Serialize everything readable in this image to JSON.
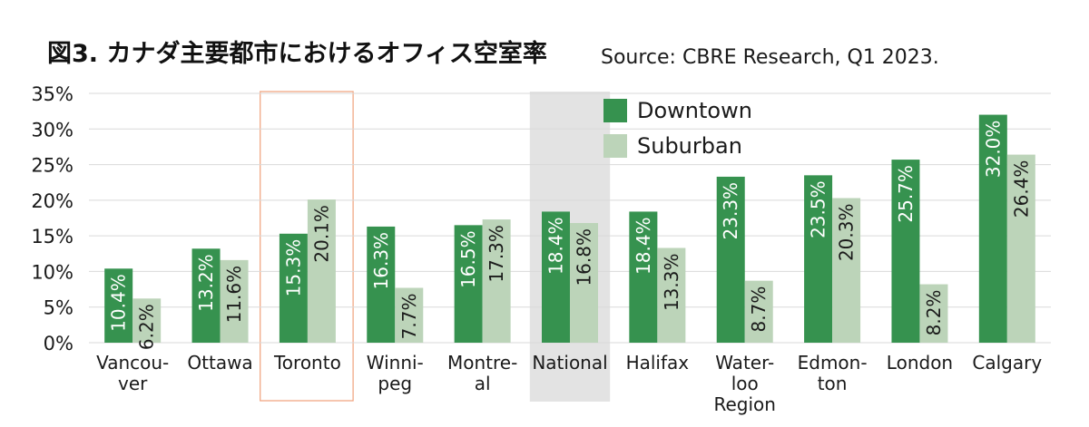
{
  "title": "図3. カナダ主要都市におけるオフィス空室率",
  "source": "Source: CBRE Research, Q1 2023.",
  "colors": {
    "downtown": "#36924f",
    "suburban": "#bcd4b9",
    "national_band": "#e3e3e3",
    "toronto_outline": "#f0a07a",
    "grid": "#d9d9d9"
  },
  "chart_data": {
    "type": "bar",
    "title": "図3. カナダ主要都市におけるオフィス空室率",
    "xlabel": "",
    "ylabel": "",
    "ylim": [
      0,
      35
    ],
    "yticks": [
      "0%",
      "5%",
      "10%",
      "15%",
      "20%",
      "25%",
      "30%",
      "35%"
    ],
    "grid": true,
    "legend_position": "top-center",
    "categories": [
      [
        "Vancou-",
        "ver"
      ],
      [
        "Ottawa"
      ],
      [
        "Toronto"
      ],
      [
        "Winni-",
        "peg"
      ],
      [
        "Montre-",
        "al"
      ],
      [
        "National"
      ],
      [
        "Halifax"
      ],
      [
        "Water-",
        "loo",
        "Region"
      ],
      [
        "Edmon-",
        "ton"
      ],
      [
        "London"
      ],
      [
        "Calgary"
      ]
    ],
    "highlighted": {
      "outlined": "Toronto",
      "shaded": "National"
    },
    "series": [
      {
        "name": "Downtown",
        "values": [
          10.4,
          13.2,
          15.3,
          16.3,
          16.5,
          18.4,
          18.4,
          23.3,
          23.5,
          25.7,
          32.0
        ],
        "labels": [
          "10.4%",
          "13.2%",
          "15.3%",
          "16.3%",
          "16.5%",
          "18.4%",
          "18.4%",
          "23.3%",
          "23.5%",
          "25.7%",
          "32.0%"
        ]
      },
      {
        "name": "Suburban",
        "values": [
          6.2,
          11.6,
          20.1,
          7.7,
          17.3,
          16.8,
          13.3,
          8.7,
          20.3,
          8.2,
          26.4
        ],
        "labels": [
          "6.2%",
          "11.6%",
          "20.1%",
          "7.7%",
          "17.3%",
          "16.8%",
          "13.3%",
          "8.7%",
          "20.3%",
          "8.2%",
          "26.4%"
        ]
      }
    ]
  }
}
